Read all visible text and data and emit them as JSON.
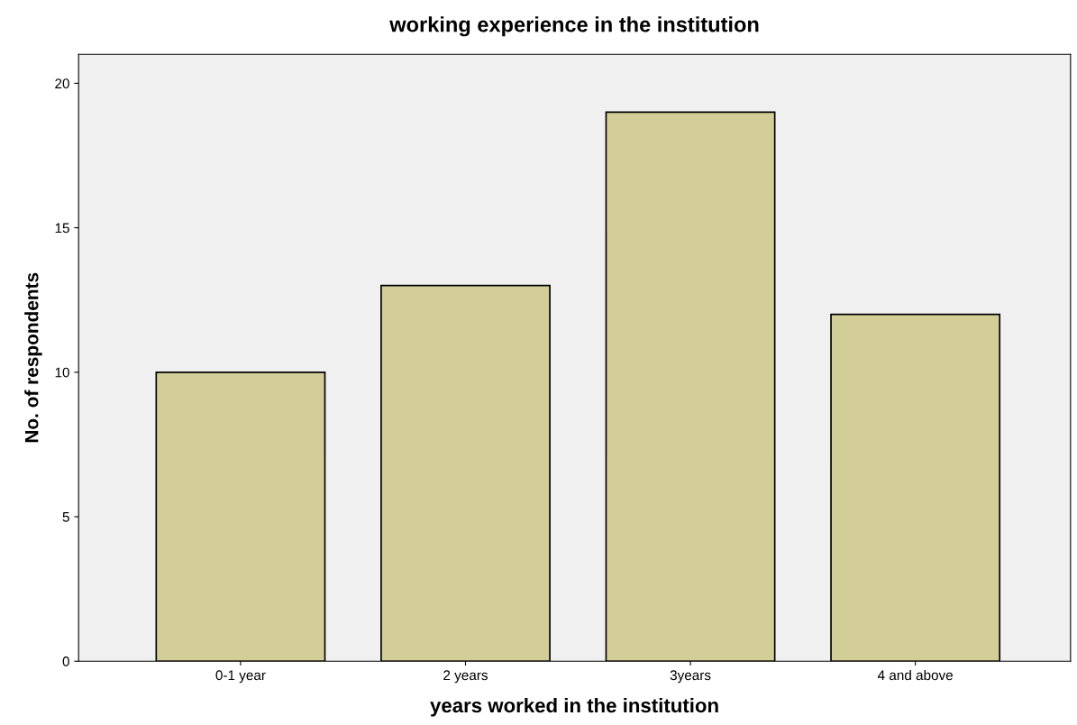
{
  "chart_data": {
    "type": "bar",
    "title": "working experience in the institution",
    "xlabel": "years worked in the institution",
    "ylabel": "No. of respondents",
    "categories": [
      "0-1 year",
      "2 years",
      "3years",
      "4 and above"
    ],
    "values": [
      10,
      13,
      19,
      12
    ],
    "color": "#d3cd98",
    "ylim": [
      0,
      21
    ],
    "yticks": [
      0,
      5,
      10,
      15,
      20
    ],
    "grid": false,
    "legend": false
  }
}
